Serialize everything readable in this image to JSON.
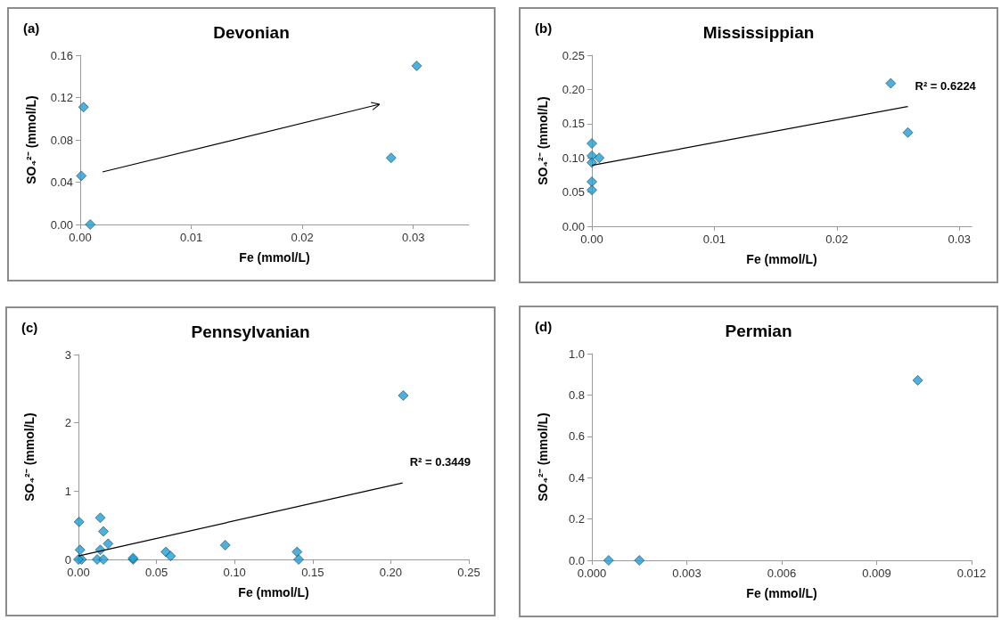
{
  "chart_data": [
    {
      "type": "scatter",
      "title": "Devonian",
      "xlabel": "Fe (mmol/L)",
      "ylabel": "SO₄²⁻ (mmol/L)",
      "marker": "diamond",
      "grid": false,
      "xlim": [
        0,
        0.035
      ],
      "xticks": [
        {
          "value": 0,
          "label": "0.00"
        },
        {
          "value": 0.01,
          "label": "0.01"
        },
        {
          "value": 0.02,
          "label": "0.02"
        },
        {
          "value": 0.03,
          "label": "0.03"
        }
      ],
      "ylim": [
        0,
        0.16
      ],
      "yticks": [
        {
          "value": 0,
          "label": "0.00"
        },
        {
          "value": 0.04,
          "label": "0.04"
        },
        {
          "value": 0.08,
          "label": "0.08"
        },
        {
          "value": 0.12,
          "label": "0.12"
        },
        {
          "value": 0.16,
          "label": "0.16"
        }
      ],
      "series": [
        {
          "color": "#1f9fd5",
          "x": [
            0.0003,
            0.0001,
            0.0009,
            0.028,
            0.0303
          ],
          "values": [
            0.111,
            0.046,
            0.0,
            0.063,
            0.15
          ]
        }
      ],
      "annotations": [
        "(a)"
      ]
    },
    {
      "type": "scatter",
      "title": "Mississippian",
      "xlabel": "Fe (mmol/L)",
      "ylabel": "SO₄²⁻ (mmol/L)",
      "marker": "diamond",
      "grid": false,
      "xlim": [
        0,
        0.031
      ],
      "xticks": [
        {
          "value": 0,
          "label": "0.00"
        },
        {
          "value": 0.01,
          "label": "0.01"
        },
        {
          "value": 0.02,
          "label": "0.02"
        },
        {
          "value": 0.03,
          "label": "0.03"
        }
      ],
      "ylim": [
        0,
        0.25
      ],
      "yticks": [
        {
          "value": 0,
          "label": "0.00"
        },
        {
          "value": 0.05,
          "label": "0.05"
        },
        {
          "value": 0.1,
          "label": "0.10"
        },
        {
          "value": 0.15,
          "label": "0.15"
        },
        {
          "value": 0.2,
          "label": "0.20"
        },
        {
          "value": 0.25,
          "label": "0.25"
        }
      ],
      "series": [
        {
          "color": "#1f9fd5",
          "x": [
            0,
            0,
            0.0006,
            0,
            0,
            0,
            0.0244,
            0.0258
          ],
          "values": [
            0.121,
            0.103,
            0.1,
            0.093,
            0.065,
            0.053,
            0.209,
            0.137
          ]
        },
        {
          "type": "line",
          "marker": "none",
          "color": "#000000",
          "x": [
            0,
            0.0258
          ],
          "values": [
            0.089,
            0.175
          ]
        }
      ],
      "annotations": [
        "(b)",
        {
          "text": "R² = 0.6224",
          "x": 0.0258,
          "y": 0.175
        }
      ]
    },
    {
      "type": "scatter",
      "title": "Pennsylvanian",
      "xlabel": "Fe (mmol/L)",
      "ylabel": "SO₄²⁻ (mmol/L)",
      "marker": "diamond",
      "grid": false,
      "xlim": [
        0,
        0.25
      ],
      "xticks": [
        {
          "value": 0,
          "label": "0.00"
        },
        {
          "value": 0.05,
          "label": "0.05"
        },
        {
          "value": 0.1,
          "label": "0.10"
        },
        {
          "value": 0.15,
          "label": "0.15"
        },
        {
          "value": 0.2,
          "label": "0.20"
        },
        {
          "value": 0.25,
          "label": "0.25"
        }
      ],
      "ylim": [
        0,
        3
      ],
      "yticks": [
        0,
        1,
        2,
        3
      ],
      "series": [
        {
          "color": "#1f9fd5",
          "x": [
            0.0004,
            0.014,
            0.016,
            0.019,
            0.014,
            0.001,
            0.002,
            0,
            0.012,
            0.016,
            0.035,
            0.035,
            0.056,
            0.059,
            0.094,
            0.14,
            0.141,
            0.208
          ],
          "values": [
            0.55,
            0.61,
            0.41,
            0.23,
            0.14,
            0.14,
            0.0,
            0.0,
            0.0,
            0.0,
            0.0,
            0.02,
            0.11,
            0.05,
            0.21,
            0.11,
            0.0,
            2.4
          ]
        },
        {
          "type": "line",
          "marker": "none",
          "color": "#000000",
          "x": [
            0,
            0.2076
          ],
          "values": [
            0.05,
            1.12
          ]
        }
      ],
      "annotations": [
        "(c)",
        {
          "text": "R² = 0.3449",
          "x": 0.2076,
          "y": 1.12
        }
      ]
    },
    {
      "type": "scatter",
      "title": "Permian",
      "xlabel": "Fe (mmol/L)",
      "ylabel": "SO₄²⁻ (mmol/L)",
      "marker": "diamond",
      "grid": false,
      "xlim": [
        0,
        0.012
      ],
      "xticks": [
        {
          "value": 0,
          "label": "0.000"
        },
        {
          "value": 0.003,
          "label": "0.003"
        },
        {
          "value": 0.006,
          "label": "0.006"
        },
        {
          "value": 0.009,
          "label": "0.009"
        },
        {
          "value": 0.012,
          "label": "0.012"
        }
      ],
      "ylim": [
        0,
        1
      ],
      "yticks": [
        {
          "value": 0,
          "label": "0.0"
        },
        {
          "value": 0.2,
          "label": "0.2"
        },
        {
          "value": 0.4,
          "label": "0.4"
        },
        {
          "value": 0.6,
          "label": "0.6"
        },
        {
          "value": 0.8,
          "label": "0.8"
        },
        {
          "value": 1,
          "label": "1.0"
        }
      ],
      "series": [
        {
          "color": "#1f9fd5",
          "x": [
            0.00053,
            0.0015,
            0.0103
          ],
          "values": [
            0.0,
            0.0,
            0.871
          ]
        }
      ],
      "annotations": [
        "(d)"
      ]
    }
  ]
}
